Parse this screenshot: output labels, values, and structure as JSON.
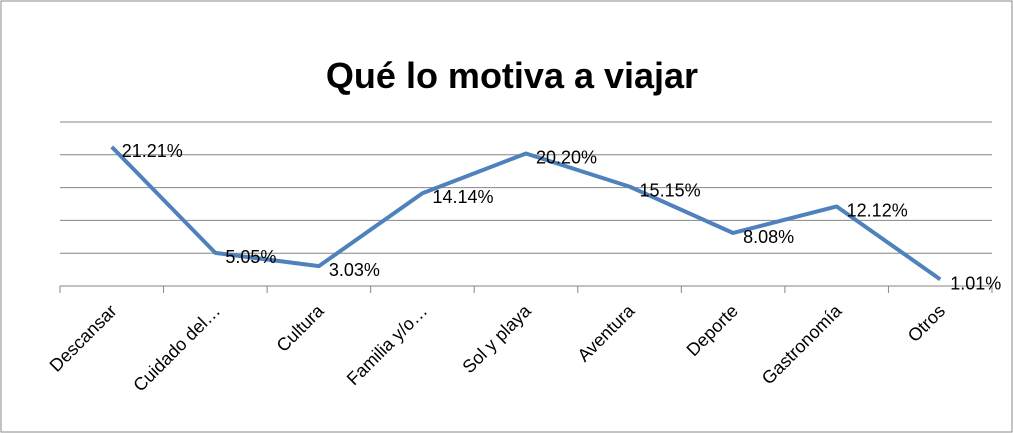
{
  "chart_data": {
    "type": "line",
    "title": "Qué lo motiva a viajar",
    "categories": [
      "Descansar",
      "Cuidado del…",
      "Cultura",
      "Familia y/o…",
      "Sol y playa",
      "Aventura",
      "Deporte",
      "Gastronomía",
      "Otros"
    ],
    "values": [
      21.21,
      5.05,
      3.03,
      14.14,
      20.2,
      15.15,
      8.08,
      12.12,
      1.01
    ],
    "value_labels": [
      "21.21%",
      "5.05%",
      "3.03%",
      "14.14%",
      "20.20%",
      "15.15%",
      "8.08%",
      "12.12%",
      "1.01%"
    ],
    "color": "#4f81bd",
    "ylim": [
      0,
      25
    ],
    "yticks": [
      0,
      5,
      10,
      15,
      20,
      25
    ],
    "grid": true
  }
}
